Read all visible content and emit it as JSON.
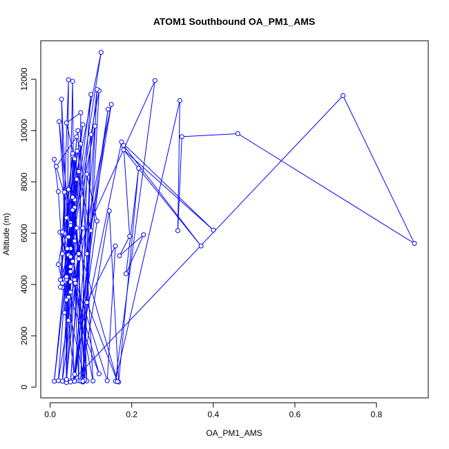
{
  "chart_data": {
    "type": "line",
    "title": "ATOM1 Southbound OA_PM1_AMS",
    "xlabel": "OA_PM1_AMS",
    "ylabel": "Altitude (m)",
    "xlim": [
      -0.023,
      0.927
    ],
    "ylim": [
      -420,
      13500
    ],
    "xticks": [
      0.0,
      0.2,
      0.4,
      0.6,
      0.8
    ],
    "xtick_labels": [
      "0.0",
      "0.2",
      "0.4",
      "0.6",
      "0.8"
    ],
    "yticks": [
      0,
      2000,
      4000,
      6000,
      8000,
      10000,
      12000
    ],
    "ytick_labels": [
      "0",
      "2000",
      "4000",
      "6000",
      "8000",
      "10000",
      "12000"
    ],
    "grid": false,
    "legend": "none",
    "line_style": "lines with open circle markers",
    "series": [
      {
        "color": "#0000ff",
        "points": [
          [
            0.01,
            8880
          ],
          [
            0.02,
            7620
          ],
          [
            0.03,
            5200
          ],
          [
            0.045,
            11980
          ],
          [
            0.04,
            220
          ],
          [
            0.055,
            11920
          ],
          [
            0.06,
            4180
          ],
          [
            0.07,
            250
          ],
          [
            0.075,
            10700
          ],
          [
            0.04,
            10300
          ],
          [
            0.1,
            6100
          ],
          [
            0.06,
            230
          ],
          [
            0.028,
            11220
          ],
          [
            0.035,
            6000
          ],
          [
            0.125,
            13050
          ],
          [
            0.05,
            5400
          ],
          [
            0.03,
            3880
          ],
          [
            0.12,
            11550
          ],
          [
            0.08,
            200
          ],
          [
            0.115,
            11600
          ],
          [
            0.062,
            4050
          ],
          [
            0.15,
            11020
          ],
          [
            0.09,
            5200
          ],
          [
            0.142,
            10830
          ],
          [
            0.06,
            500
          ],
          [
            0.11,
            10170
          ],
          [
            0.035,
            4200
          ],
          [
            0.257,
            11950
          ],
          [
            0.16,
            230
          ],
          [
            0.318,
            11170
          ],
          [
            0.313,
            6100
          ],
          [
            0.323,
            9760
          ],
          [
            0.46,
            9880
          ],
          [
            0.893,
            5600
          ],
          [
            0.718,
            11360
          ],
          [
            0.056,
            260
          ],
          [
            0.175,
            9560
          ],
          [
            0.4,
            6120
          ],
          [
            0.18,
            9250
          ],
          [
            0.37,
            5500
          ],
          [
            0.18,
            9420
          ],
          [
            0.195,
            5880
          ],
          [
            0.17,
            5120
          ],
          [
            0.229,
            5940
          ],
          [
            0.186,
            4420
          ],
          [
            0.217,
            8530
          ],
          [
            0.168,
            200
          ],
          [
            0.145,
            6870
          ],
          [
            0.075,
            240
          ],
          [
            0.09,
            8300
          ],
          [
            0.115,
            6470
          ],
          [
            0.06,
            230
          ],
          [
            0.035,
            4100
          ],
          [
            0.12,
            520
          ],
          [
            0.024,
            6040
          ],
          [
            0.14,
            250
          ],
          [
            0.16,
            5500
          ],
          [
            0.09,
            3300
          ],
          [
            0.165,
            220
          ],
          [
            0.015,
            8600
          ],
          [
            0.065,
            9760
          ],
          [
            0.03,
            230
          ],
          [
            0.07,
            5000
          ],
          [
            0.05,
            200
          ],
          [
            0.1,
            11410
          ],
          [
            0.04,
            4200
          ],
          [
            0.08,
            10230
          ],
          [
            0.02,
            4780
          ],
          [
            0.085,
            280
          ],
          [
            0.055,
            9020
          ],
          [
            0.045,
            7700
          ],
          [
            0.04,
            180
          ],
          [
            0.065,
            6200
          ],
          [
            0.025,
            4180
          ],
          [
            0.068,
            10000
          ],
          [
            0.09,
            240
          ],
          [
            0.022,
            10350
          ],
          [
            0.045,
            5150
          ],
          [
            0.105,
            240
          ],
          [
            0.075,
            9480
          ],
          [
            0.01,
            230
          ],
          [
            0.045,
            5850
          ],
          [
            0.06,
            7000
          ],
          [
            0.085,
            280
          ],
          [
            0.1,
            9850
          ],
          [
            0.08,
            230
          ],
          [
            0.05,
            6400
          ],
          [
            0.03,
            4050
          ],
          [
            0.03,
            6050
          ],
          [
            0.05,
            5080
          ],
          [
            0.025,
            3900
          ],
          [
            0.035,
            7600
          ],
          [
            0.04,
            300
          ],
          [
            0.07,
            5200
          ],
          [
            0.06,
            7300
          ],
          [
            0.045,
            2600
          ],
          [
            0.055,
            9100
          ],
          [
            0.04,
            6600
          ],
          [
            0.05,
            4500
          ],
          [
            0.08,
            6200
          ],
          [
            0.02,
            250
          ],
          [
            0.06,
            8900
          ],
          [
            0.05,
            3700
          ],
          [
            0.042,
            5400
          ],
          [
            0.055,
            7400
          ],
          [
            0.04,
            4300
          ],
          [
            0.07,
            8400
          ],
          [
            0.05,
            4100
          ],
          [
            0.066,
            9200
          ],
          [
            0.045,
            3500
          ],
          [
            0.06,
            5700
          ],
          [
            0.035,
            2900
          ],
          [
            0.055,
            6900
          ],
          [
            0.05,
            4700
          ],
          [
            0.065,
            8100
          ],
          [
            0.04,
            3400
          ],
          [
            0.05,
            6300
          ],
          [
            0.055,
            4900
          ]
        ]
      }
    ]
  }
}
